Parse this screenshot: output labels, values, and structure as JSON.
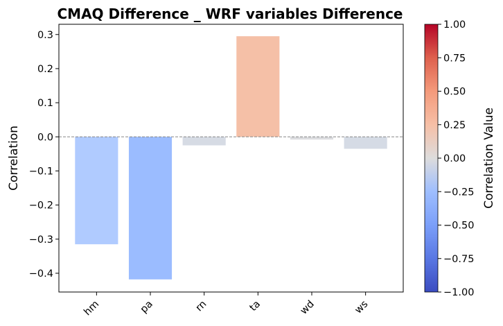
{
  "chart_data": {
    "type": "bar",
    "title": "CMAQ Difference _ WRF variables Difference",
    "xlabel": "",
    "ylabel": "Correlation",
    "categories": [
      "hm",
      "pa",
      "rn",
      "ta",
      "wd",
      "ws"
    ],
    "values": [
      -0.315,
      -0.418,
      -0.025,
      0.295,
      -0.008,
      -0.035
    ],
    "bar_colors": [
      "#b0cbff",
      "#9bbcff",
      "#d6dbe4",
      "#f5c0a7",
      "#dbdcdf",
      "#d5dbe5"
    ],
    "ylim": [
      -0.455,
      0.33
    ],
    "yticks": [
      {
        "value": 0.3,
        "label": "0.3"
      },
      {
        "value": 0.2,
        "label": "0.2"
      },
      {
        "value": 0.1,
        "label": "0.1"
      },
      {
        "value": 0.0,
        "label": "0.0"
      },
      {
        "value": -0.1,
        "label": "−0.1"
      },
      {
        "value": -0.2,
        "label": "−0.2"
      },
      {
        "value": -0.3,
        "label": "−0.3"
      },
      {
        "value": -0.4,
        "label": "−0.4"
      }
    ],
    "zero_line": {
      "value": 0,
      "color": "#888888",
      "style": "dashed"
    },
    "grid": false,
    "colorbar": {
      "label": "Correlation Value",
      "colormap": "coolwarm",
      "range": [
        -1,
        1
      ],
      "ticks": [
        {
          "value": 1.0,
          "label": "1.00"
        },
        {
          "value": 0.75,
          "label": "0.75"
        },
        {
          "value": 0.5,
          "label": "0.50"
        },
        {
          "value": 0.25,
          "label": "0.25"
        },
        {
          "value": 0.0,
          "label": "0.00"
        },
        {
          "value": -0.25,
          "label": "−0.25"
        },
        {
          "value": -0.5,
          "label": "−0.50"
        },
        {
          "value": -0.75,
          "label": "−0.75"
        },
        {
          "value": -1.0,
          "label": "−1.00"
        }
      ]
    }
  }
}
